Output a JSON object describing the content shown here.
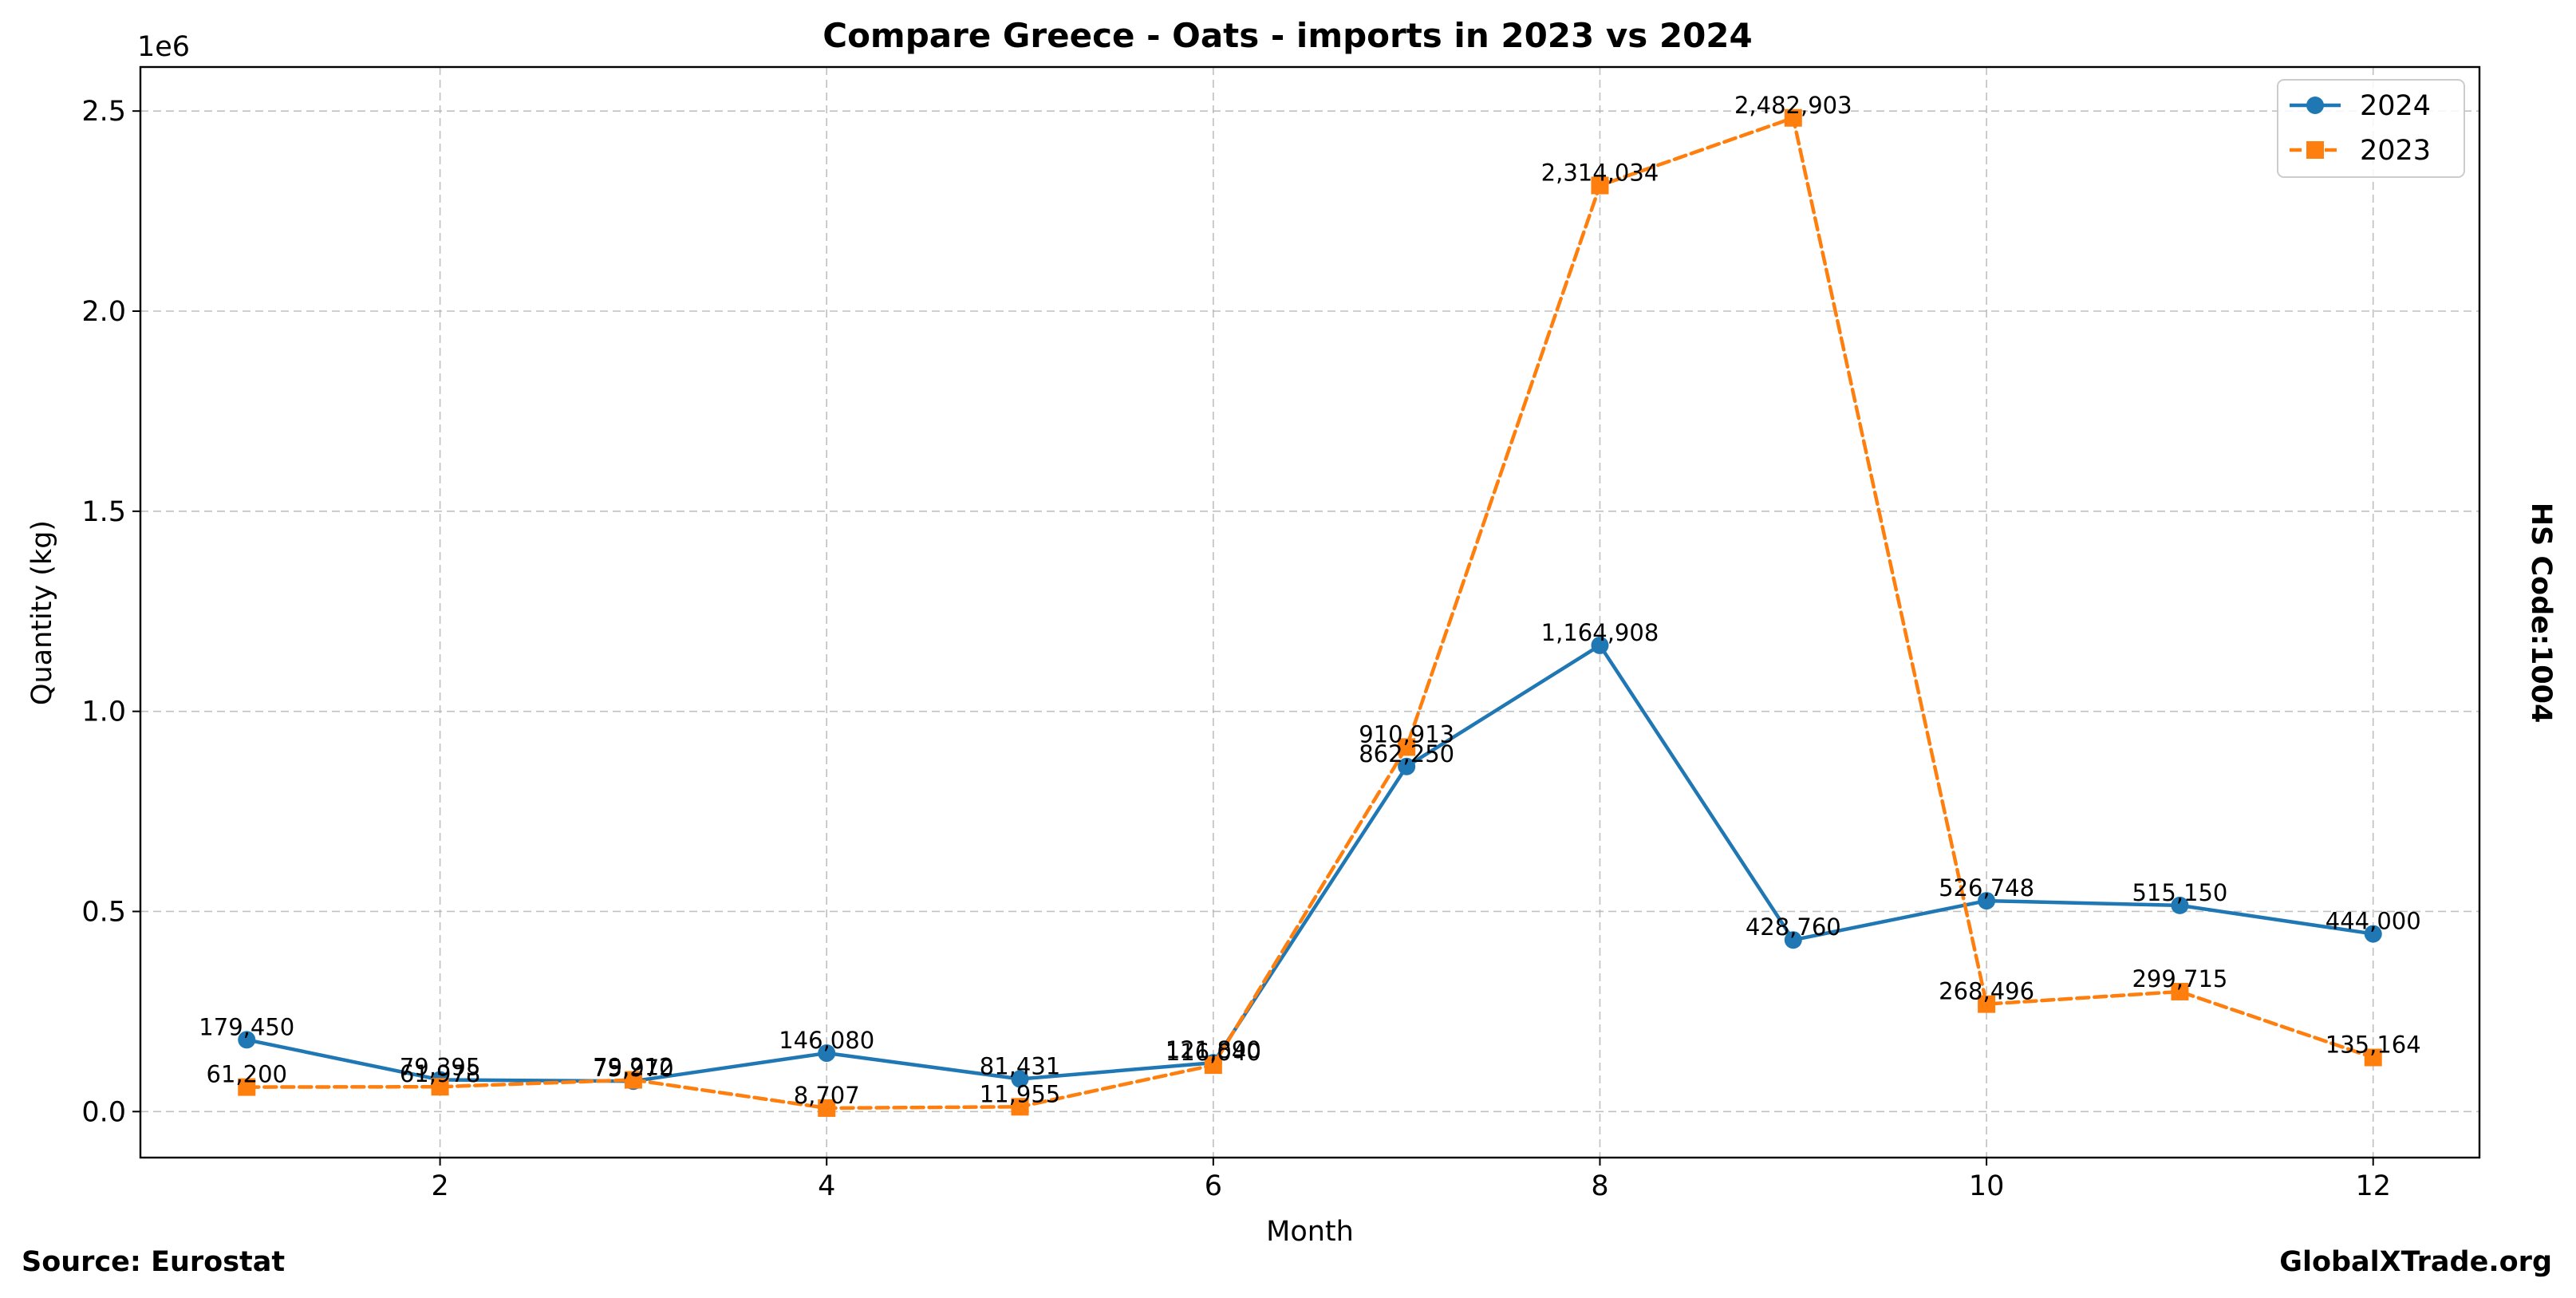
{
  "chart_data": {
    "type": "line",
    "title": "Compare Greece - Oats - imports in 2023 vs 2024",
    "xlabel": "Month",
    "ylabel": "Quantity (kg)",
    "y_offset_text": "1e6",
    "y_scale": 1000000,
    "x": [
      1,
      2,
      3,
      4,
      5,
      6,
      7,
      8,
      9,
      10,
      11,
      12
    ],
    "xlim": [
      0.45,
      12.55
    ],
    "ylim": [
      -115000,
      2610000
    ],
    "x_ticks": [
      2,
      4,
      6,
      8,
      10,
      12
    ],
    "x_tick_labels": [
      "2",
      "4",
      "6",
      "8",
      "10",
      "12"
    ],
    "y_ticks": [
      0,
      500000,
      1000000,
      1500000,
      2000000,
      2500000
    ],
    "y_tick_labels": [
      "0.0",
      "0.5",
      "1.0",
      "1.5",
      "2.0",
      "2.5"
    ],
    "grid": true,
    "legend_position": "top-right",
    "series": [
      {
        "name": "2024",
        "color": "#1f77b4",
        "line_style": "solid",
        "marker": "circle",
        "values": [
          179450,
          79395,
          75970,
          146080,
          81431,
          121890,
          862250,
          1164908,
          428760,
          526748,
          515150,
          444000
        ],
        "labels": [
          "179,450",
          "79,395",
          "75,970",
          "146,080",
          "81,431",
          "121,890",
          "862,250",
          "1,164,908",
          "428,760",
          "526,748",
          "515,150",
          "444,000"
        ]
      },
      {
        "name": "2023",
        "color": "#ff7f0e",
        "line_style": "dashed",
        "marker": "square",
        "values": [
          61200,
          61978,
          79212,
          8707,
          11955,
          116040,
          910913,
          2314034,
          2482903,
          268496,
          299715,
          135164
        ],
        "labels": [
          "61,200",
          "61,978",
          "79,212",
          "8,707",
          "11,955",
          "116,040",
          "910,913",
          "2,314,034",
          "2,482,903",
          "268,496",
          "299,715",
          "135,164"
        ]
      }
    ]
  },
  "side_label": "HS Code:1004",
  "source_label": "Source: Eurostat",
  "brand_label": "GlobalXTrade.org"
}
